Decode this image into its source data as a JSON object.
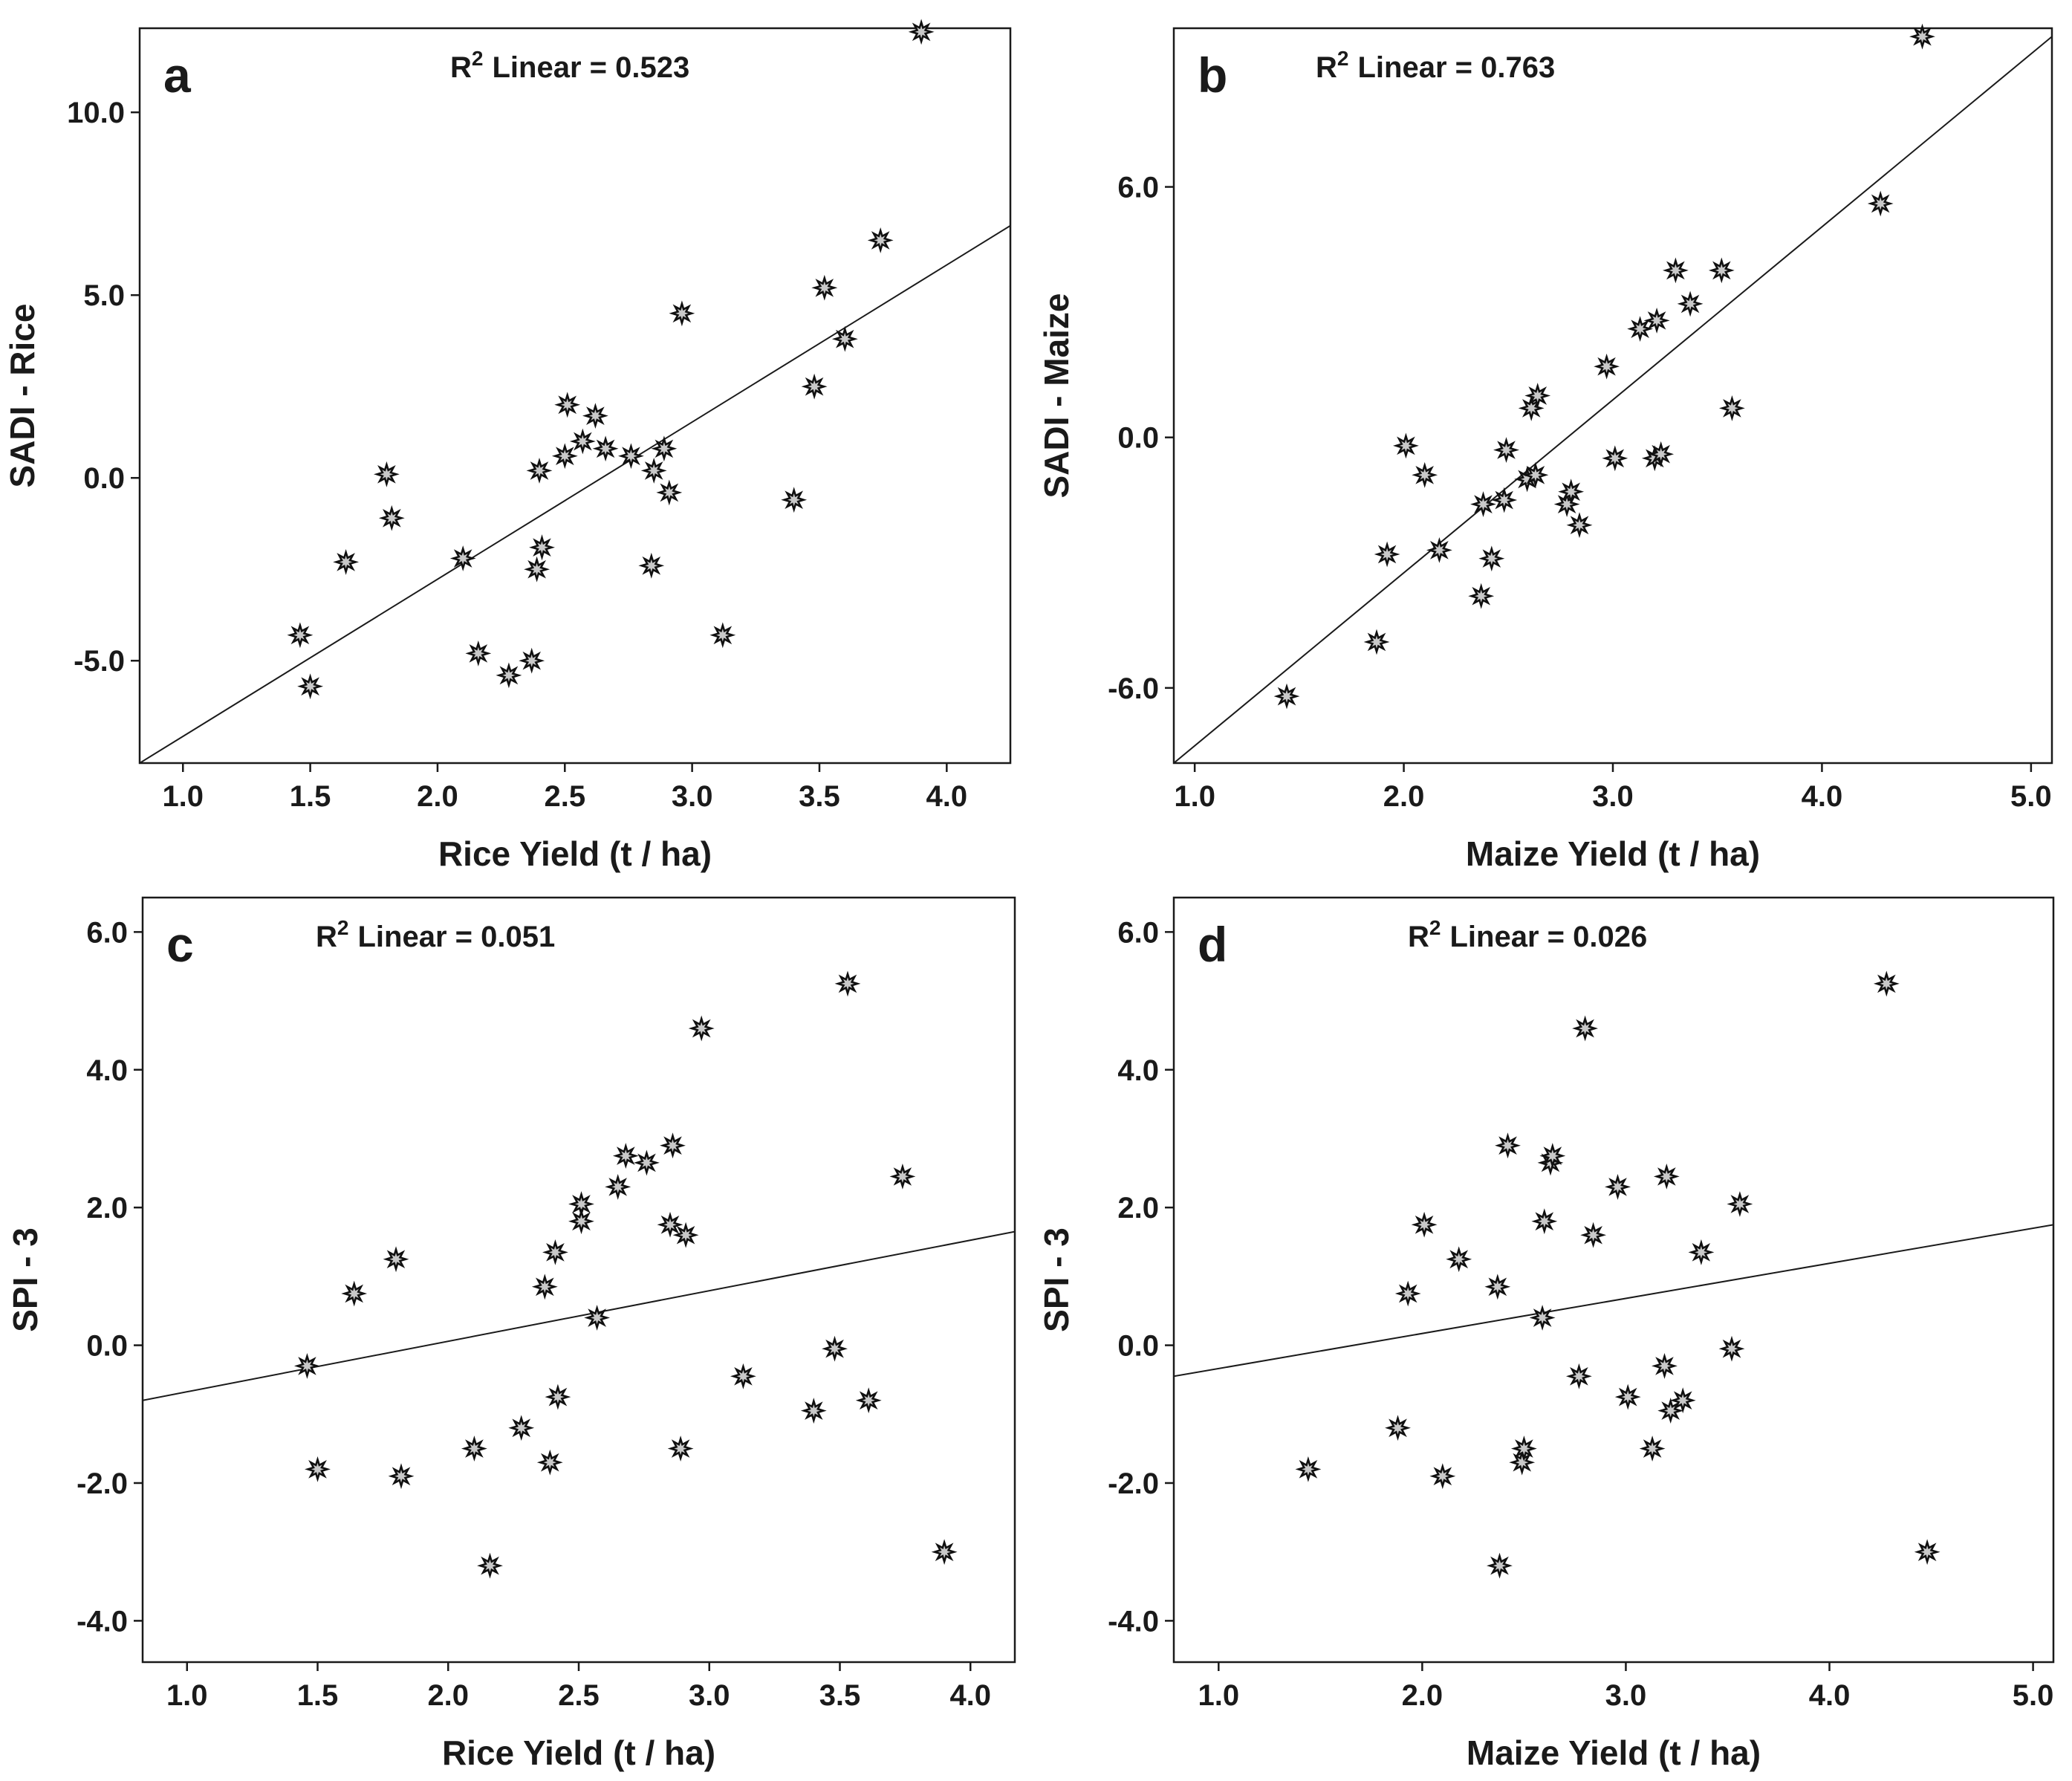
{
  "chart_data": [
    {
      "type": "scatter",
      "panel": "a",
      "r2_prefix": "R",
      "r2_sup": "2",
      "r2_label": "Linear = 0.523",
      "xlabel": "Rice Yield (t / ha)",
      "ylabel": "SADI - Rice",
      "xlim": [
        0.83,
        4.25
      ],
      "ylim": [
        -7.8,
        12.3
      ],
      "xticks": [
        "1.0",
        "1.5",
        "2.0",
        "2.5",
        "3.0",
        "3.5",
        "4.0"
      ],
      "yticks": [
        "-5.0",
        "0.0",
        "5.0",
        "10.0"
      ],
      "fit": {
        "x": [
          0.83,
          4.25
        ],
        "y": [
          -7.8,
          6.9
        ]
      },
      "points": {
        "x": [
          1.46,
          1.5,
          1.64,
          1.8,
          1.82,
          2.1,
          2.16,
          2.28,
          2.37,
          2.39,
          2.4,
          2.41,
          2.5,
          2.51,
          2.57,
          2.62,
          2.66,
          2.76,
          2.84,
          2.85,
          2.89,
          2.91,
          2.96,
          3.12,
          3.4,
          3.48,
          3.52,
          3.6,
          3.74,
          3.9
        ],
        "y": [
          -4.3,
          -5.7,
          -2.3,
          0.1,
          -1.1,
          -2.2,
          -4.8,
          -5.4,
          -5.0,
          -2.5,
          0.2,
          -1.9,
          0.6,
          2.0,
          1.0,
          1.7,
          0.8,
          0.6,
          -2.4,
          0.2,
          0.8,
          -0.4,
          4.5,
          -4.3,
          -0.6,
          2.5,
          5.2,
          3.8,
          6.5,
          12.2
        ]
      }
    },
    {
      "type": "scatter",
      "panel": "b",
      "r2_prefix": "R",
      "r2_sup": "2",
      "r2_label": "Linear = 0.763",
      "xlabel": "Maize Yield (t / ha)",
      "ylabel": "SADI - Maize",
      "xlim": [
        0.9,
        5.1
      ],
      "ylim": [
        -7.8,
        9.8
      ],
      "xticks": [
        "1.0",
        "2.0",
        "3.0",
        "4.0",
        "5.0"
      ],
      "yticks": [
        "-6.0",
        "0.0",
        "6.0"
      ],
      "fit": {
        "x": [
          0.9,
          5.1
        ],
        "y": [
          -7.8,
          9.6
        ]
      },
      "points": {
        "x": [
          1.44,
          1.87,
          1.92,
          2.01,
          2.1,
          2.17,
          2.37,
          2.38,
          2.42,
          2.48,
          2.49,
          2.59,
          2.61,
          2.63,
          2.64,
          2.78,
          2.8,
          2.84,
          2.97,
          3.01,
          3.13,
          3.2,
          3.21,
          3.23,
          3.3,
          3.37,
          3.52,
          3.57,
          4.28,
          4.48
        ],
        "y": [
          -6.2,
          -4.9,
          -2.8,
          -0.2,
          -0.9,
          -2.7,
          -3.8,
          -1.6,
          -2.9,
          -1.5,
          -0.3,
          -1.0,
          0.7,
          -0.9,
          1.0,
          -1.6,
          -1.3,
          -2.1,
          1.7,
          -0.5,
          2.6,
          -0.5,
          2.8,
          -0.4,
          4.0,
          3.2,
          4.0,
          0.7,
          5.6,
          9.6
        ]
      }
    },
    {
      "type": "scatter",
      "panel": "c",
      "r2_prefix": "R",
      "r2_sup": "2",
      "r2_label": "Linear = 0.051",
      "xlabel": "Rice Yield (t / ha)",
      "ylabel": "SPI - 3",
      "xlim": [
        0.83,
        4.17
      ],
      "ylim": [
        -4.6,
        6.5
      ],
      "xticks": [
        "1.0",
        "1.5",
        "2.0",
        "2.5",
        "3.0",
        "3.5",
        "4.0"
      ],
      "yticks": [
        "-4.0",
        "-2.0",
        "0.0",
        "2.0",
        "4.0",
        "6.0"
      ],
      "fit": {
        "x": [
          0.83,
          4.17
        ],
        "y": [
          -0.8,
          1.65
        ]
      },
      "points": {
        "x": [
          1.46,
          1.5,
          1.64,
          1.8,
          1.82,
          2.1,
          2.16,
          2.28,
          2.37,
          2.39,
          2.41,
          2.42,
          2.51,
          2.51,
          2.57,
          2.65,
          2.68,
          2.76,
          2.85,
          2.86,
          2.89,
          2.91,
          2.97,
          3.13,
          3.4,
          3.48,
          3.53,
          3.61,
          3.74,
          3.9
        ],
        "y": [
          -0.3,
          -1.8,
          0.75,
          1.25,
          -1.9,
          -1.5,
          -3.2,
          -1.2,
          0.85,
          -1.7,
          1.35,
          -0.75,
          2.05,
          1.8,
          0.4,
          2.3,
          2.75,
          2.65,
          1.75,
          2.9,
          -1.5,
          1.6,
          4.6,
          -0.45,
          -0.95,
          -0.05,
          5.25,
          -0.8,
          2.45,
          -3.0
        ]
      }
    },
    {
      "type": "scatter",
      "panel": "d",
      "r2_prefix": "R",
      "r2_sup": "2",
      "r2_label": "Linear = 0.026",
      "xlabel": "Maize Yield (t / ha)",
      "ylabel": "SPI - 3",
      "xlim": [
        0.78,
        5.1
      ],
      "ylim": [
        -4.6,
        6.5
      ],
      "xticks": [
        "1.0",
        "2.0",
        "3.0",
        "4.0",
        "5.0"
      ],
      "yticks": [
        "-4.0",
        "-2.0",
        "0.0",
        "2.0",
        "4.0",
        "6.0"
      ],
      "fit": {
        "x": [
          0.78,
          5.1
        ],
        "y": [
          -0.45,
          1.75
        ]
      },
      "points": {
        "x": [
          1.44,
          1.88,
          1.93,
          2.01,
          2.1,
          2.18,
          2.37,
          2.38,
          2.42,
          2.49,
          2.5,
          2.59,
          2.6,
          2.63,
          2.64,
          2.77,
          2.8,
          2.84,
          2.96,
          3.01,
          3.13,
          3.19,
          3.2,
          3.22,
          3.28,
          3.37,
          3.52,
          3.56,
          4.28,
          4.48
        ],
        "y": [
          -1.8,
          -1.2,
          0.75,
          1.75,
          -1.9,
          1.25,
          0.85,
          -3.2,
          2.9,
          -1.7,
          -1.5,
          0.4,
          1.8,
          2.65,
          2.75,
          -0.45,
          4.6,
          1.6,
          2.3,
          -0.75,
          -1.5,
          -0.3,
          2.45,
          -0.95,
          -0.8,
          1.35,
          -0.05,
          2.05,
          5.25,
          -3.0
        ]
      }
    }
  ]
}
